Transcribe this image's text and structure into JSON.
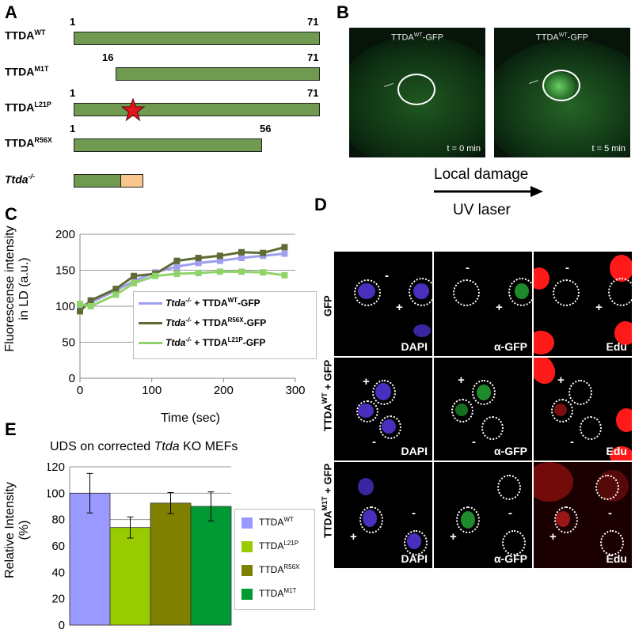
{
  "panels": {
    "a": "A",
    "b": "B",
    "c": "C",
    "d": "D",
    "e": "E"
  },
  "panel_a": {
    "constructs": [
      {
        "base": "TTDA",
        "sup": "WT",
        "start": "1",
        "end": "71"
      },
      {
        "base": "TTDA",
        "sup": "M1T",
        "start": "16",
        "end": "71"
      },
      {
        "base": "TTDA",
        "sup": "L21P",
        "start": "1",
        "end": "71"
      },
      {
        "base": "TTDA",
        "sup": "R56X",
        "start": "1",
        "end": "56"
      },
      {
        "base": "Ttda",
        "sup": "-/-",
        "start": "",
        "end": ""
      }
    ],
    "colors": {
      "bar": "#6f9a50",
      "ko_tail": "#f8c58a",
      "star": "#e0161b"
    }
  },
  "panel_b": {
    "images": [
      {
        "title_base": "TTDA",
        "title_sup": "WT",
        "title_suffix": "-GFP",
        "time": "t = 0 min"
      },
      {
        "title_base": "TTDA",
        "title_sup": "WT",
        "title_suffix": "-GFP",
        "time": "t = 5 min"
      }
    ],
    "arrow_top": "Local damage",
    "arrow_bottom": "UV laser"
  },
  "panel_c": {
    "chart_data": {
      "type": "line",
      "xlabel": "Time (sec)",
      "ylabel_line1": "Fluorescense intensity",
      "ylabel_line2": "in LD (a.u.)",
      "xlim": [
        0,
        300
      ],
      "ylim": [
        0,
        200
      ],
      "xticks": [
        0,
        100,
        200,
        300
      ],
      "yticks": [
        0,
        50,
        100,
        150,
        200
      ],
      "x": [
        0,
        15,
        50,
        75,
        105,
        135,
        165,
        195,
        225,
        255,
        285
      ],
      "series": [
        {
          "name_prefix": "Ttda",
          "name_sup1": "-/-",
          "name_mid": " + TTDA",
          "name_sup2": "WT",
          "name_suffix": "-GFP",
          "color": "#9f9fef",
          "values": [
            100,
            105,
            122,
            135,
            147,
            155,
            160,
            163,
            167,
            170,
            173
          ]
        },
        {
          "name_prefix": "Ttda",
          "name_sup1": "-/-",
          "name_mid": " + TTDA",
          "name_sup2": "R56X",
          "name_suffix": "-GFP",
          "color": "#5f6b35",
          "values": [
            93,
            108,
            124,
            142,
            145,
            163,
            167,
            170,
            175,
            174,
            182
          ]
        },
        {
          "name_prefix": "Ttda",
          "name_sup1": "-/-",
          "name_mid": " + TTDA",
          "name_sup2": "L21P",
          "name_suffix": "-GFP",
          "color": "#8fd46a",
          "values": [
            103,
            100,
            116,
            132,
            142,
            145,
            146,
            148,
            148,
            147,
            143
          ]
        }
      ],
      "grid": "horizontal",
      "legend": "center-right"
    }
  },
  "panel_d": {
    "row_labels": [
      {
        "base": "GFP",
        "sup": "",
        "suffix": ""
      },
      {
        "base": "TTDA",
        "sup": "WT",
        "suffix": " + GFP"
      },
      {
        "base": "TTDA",
        "sup": "M1T",
        "suffix": " + GFP"
      }
    ],
    "col_labels": [
      "DAPI",
      "α-GFP",
      "Edu"
    ],
    "plus": "+",
    "minus": "-"
  },
  "panel_e": {
    "chart_data": {
      "type": "bar",
      "title_pre": "UDS on corrected ",
      "title_italic": "Ttda",
      "title_post": " KO MEFs",
      "ylabel_line1": "Relative Intensity",
      "ylabel_line2": "(%)",
      "ylim": [
        0,
        120
      ],
      "yticks": [
        0,
        20,
        40,
        60,
        80,
        100,
        120
      ],
      "categories": [
        {
          "base": "TTDA",
          "sup": "WT"
        },
        {
          "base": "TTDA",
          "sup": "L21P"
        },
        {
          "base": "TTDA",
          "sup": "R56X"
        },
        {
          "base": "TTDA",
          "sup": "M1T"
        }
      ],
      "values": [
        100,
        74,
        92.5,
        90
      ],
      "errors": [
        15,
        8,
        8,
        11
      ],
      "colors": [
        "#9999ff",
        "#99cc00",
        "#808000",
        "#009933"
      ],
      "grid": "horizontal",
      "legend": "right"
    }
  }
}
